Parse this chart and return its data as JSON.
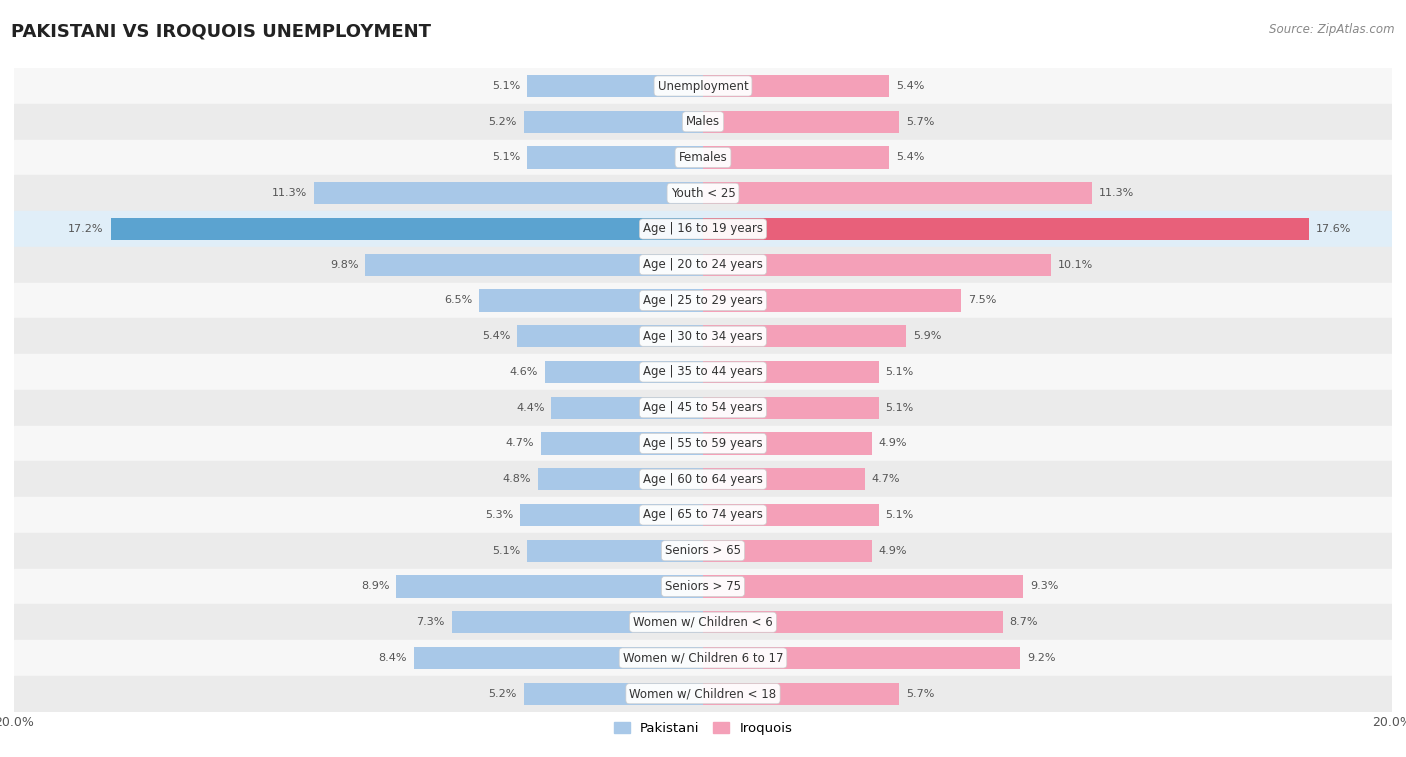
{
  "title": "PAKISTANI VS IROQUOIS UNEMPLOYMENT",
  "source": "Source: ZipAtlas.com",
  "categories": [
    "Unemployment",
    "Males",
    "Females",
    "Youth < 25",
    "Age | 16 to 19 years",
    "Age | 20 to 24 years",
    "Age | 25 to 29 years",
    "Age | 30 to 34 years",
    "Age | 35 to 44 years",
    "Age | 45 to 54 years",
    "Age | 55 to 59 years",
    "Age | 60 to 64 years",
    "Age | 65 to 74 years",
    "Seniors > 65",
    "Seniors > 75",
    "Women w/ Children < 6",
    "Women w/ Children 6 to 17",
    "Women w/ Children < 18"
  ],
  "pakistani": [
    5.1,
    5.2,
    5.1,
    11.3,
    17.2,
    9.8,
    6.5,
    5.4,
    4.6,
    4.4,
    4.7,
    4.8,
    5.3,
    5.1,
    8.9,
    7.3,
    8.4,
    5.2
  ],
  "iroquois": [
    5.4,
    5.7,
    5.4,
    11.3,
    17.6,
    10.1,
    7.5,
    5.9,
    5.1,
    5.1,
    4.9,
    4.7,
    5.1,
    4.9,
    9.3,
    8.7,
    9.2,
    5.7
  ],
  "pakistani_color": "#a8c8e8",
  "iroquois_color": "#f4a0b8",
  "pakistani_highlight_color": "#5ba3d0",
  "iroquois_highlight_color": "#e8607a",
  "bar_height": 0.62,
  "max_val": 20.0,
  "bg_color": "#ffffff",
  "row_light": "#f7f7f7",
  "row_dark": "#ebebeb",
  "highlight_row_bg": "#e0eef8"
}
